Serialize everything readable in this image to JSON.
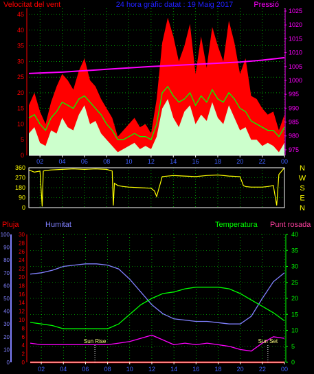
{
  "chart_data": [
    {
      "type": "line",
      "id": "wind",
      "title": "24 hora gràfic datat : 19 Maig 2017",
      "left_label": "Velocitat del vent",
      "right_label": "Pressió",
      "x_ticks": [
        "02",
        "04",
        "06",
        "08",
        "10",
        "12",
        "14",
        "16",
        "18",
        "20",
        "22",
        "00"
      ],
      "y_left_ticks": [
        "0",
        "5",
        "10",
        "15",
        "20",
        "25",
        "30",
        "35",
        "40",
        "45"
      ],
      "y_right_ticks": [
        "975",
        "980",
        "985",
        "990",
        "995",
        "1000",
        "1005",
        "1010",
        "1015",
        "1020",
        "1025"
      ],
      "y_left_range": [
        0,
        47
      ],
      "y_right_range": [
        973,
        1026
      ],
      "x_range": [
        1,
        24
      ],
      "grid": true,
      "series": [
        {
          "role": "gust",
          "color": "#ff0000",
          "x": [
            1.0,
            1.5,
            2.0,
            2.5,
            3.0,
            3.5,
            4.0,
            4.5,
            5.0,
            5.5,
            6.0,
            6.5,
            7.0,
            7.5,
            8.0,
            8.5,
            9.0,
            9.5,
            10.0,
            10.5,
            11.0,
            11.5,
            12.0,
            12.5,
            13.0,
            13.5,
            14.0,
            14.5,
            15.0,
            15.5,
            16.0,
            16.5,
            17.0,
            17.5,
            18.0,
            18.5,
            19.0,
            19.5,
            20.0,
            20.5,
            21.0,
            21.5,
            22.0,
            22.5,
            23.0,
            23.5,
            24.0
          ],
          "y": [
            16,
            20,
            14,
            10,
            17,
            22,
            26,
            24,
            21,
            27,
            31,
            24,
            22,
            18,
            15,
            12,
            6,
            8,
            10,
            12,
            9,
            10,
            7,
            18,
            36,
            44,
            38,
            30,
            35,
            42,
            26,
            38,
            28,
            41,
            35,
            30,
            43,
            36,
            26,
            31,
            19,
            18,
            15,
            13,
            14,
            8,
            13
          ]
        },
        {
          "role": "average",
          "color": "#00ff00",
          "x": [
            1.0,
            1.5,
            2.0,
            2.5,
            3.0,
            3.5,
            4.0,
            4.5,
            5.0,
            5.5,
            6.0,
            6.5,
            7.0,
            7.5,
            8.0,
            8.5,
            9.0,
            9.5,
            10.0,
            10.5,
            11.0,
            11.5,
            12.0,
            12.5,
            13.0,
            13.5,
            14.0,
            14.5,
            15.0,
            15.5,
            16.0,
            16.5,
            17.0,
            17.5,
            18.0,
            18.5,
            19.0,
            19.5,
            20.0,
            20.5,
            21.0,
            21.5,
            22.0,
            22.5,
            23.0,
            23.5,
            24.0
          ],
          "y": [
            12,
            13,
            10,
            8,
            12,
            14,
            17,
            16,
            15,
            18,
            19,
            17,
            15,
            13,
            10,
            8,
            5,
            5,
            6,
            7,
            6,
            6,
            5,
            10,
            20,
            22,
            19,
            17,
            18,
            20,
            16,
            19,
            17,
            21,
            18,
            17,
            20,
            18,
            15,
            14,
            11,
            10,
            9,
            8,
            8,
            6,
            9
          ]
        },
        {
          "role": "wind",
          "color": "#ccffcc",
          "x": [
            1.0,
            1.5,
            2.0,
            2.5,
            3.0,
            3.5,
            4.0,
            4.5,
            5.0,
            5.5,
            6.0,
            6.5,
            7.0,
            7.5,
            8.0,
            8.5,
            9.0,
            9.5,
            10.0,
            10.5,
            11.0,
            11.5,
            12.0,
            12.5,
            13.0,
            13.5,
            14.0,
            14.5,
            15.0,
            15.5,
            16.0,
            16.5,
            17.0,
            17.5,
            18.0,
            18.5,
            19.0,
            19.5,
            20.0,
            20.5,
            21.0,
            21.5,
            22.0,
            22.5,
            23.0,
            23.5,
            24.0
          ],
          "y": [
            7,
            9,
            4,
            3,
            8,
            7,
            12,
            9,
            8,
            13,
            16,
            10,
            11,
            7,
            5,
            3,
            1,
            2,
            3,
            4,
            2,
            3,
            2,
            6,
            15,
            18,
            12,
            9,
            14,
            16,
            10,
            13,
            11,
            17,
            12,
            10,
            16,
            12,
            8,
            9,
            5,
            5,
            3,
            4,
            3,
            1,
            4
          ]
        },
        {
          "role": "pressure",
          "axis": "right",
          "color": "#ff00ff",
          "x": [
            1,
            4,
            8,
            12,
            16,
            20,
            22,
            24
          ],
          "y": [
            1002.5,
            1003,
            1004,
            1005,
            1005.8,
            1006.6,
            1007.3,
            1008.2
          ]
        }
      ]
    },
    {
      "type": "line",
      "id": "direction",
      "y_ticks": [
        "360",
        "270",
        "180",
        "90",
        "0"
      ],
      "y_range": [
        0,
        360
      ],
      "x_range": [
        1,
        24
      ],
      "compass_labels": [
        "N",
        "W",
        "S",
        "E",
        "N"
      ],
      "grid": true,
      "series": [
        {
          "role": "direction",
          "color": "#ffff00",
          "x": [
            1.0,
            1.5,
            2.0,
            2.2,
            2.3,
            2.5,
            3.0,
            4.0,
            5.0,
            6.0,
            7.0,
            8.0,
            8.5,
            8.6,
            8.7,
            9.0,
            9.5,
            10.0,
            11.0,
            12.0,
            12.3,
            12.5,
            13.0,
            14.0,
            15.0,
            16.0,
            17.0,
            18.0,
            19.0,
            20.0,
            20.3,
            20.5,
            21.0,
            22.0,
            22.5,
            23.0,
            23.3,
            23.5,
            24.0
          ],
          "y": [
            340,
            320,
            330,
            10,
            330,
            335,
            340,
            345,
            350,
            345,
            350,
            345,
            330,
            20,
            220,
            200,
            190,
            185,
            180,
            175,
            150,
            100,
            280,
            290,
            285,
            280,
            290,
            295,
            285,
            280,
            200,
            190,
            185,
            185,
            190,
            200,
            20,
            300,
            360
          ]
        }
      ]
    },
    {
      "type": "line",
      "id": "climate",
      "left_labels": [
        "Pluja",
        "Humitat"
      ],
      "right_labels": [
        "Temperatura",
        "Punt rosada"
      ],
      "y_rain_ticks": [
        "0",
        "2",
        "4",
        "6",
        "8",
        "10",
        "12",
        "14",
        "16",
        "18",
        "20",
        "22",
        "24",
        "26",
        "28",
        "30"
      ],
      "y_humidity_ticks": [
        "0",
        "10",
        "20",
        "30",
        "40",
        "50",
        "60",
        "70",
        "80",
        "90",
        "100"
      ],
      "y_temp_ticks": [
        "0",
        "5",
        "10",
        "15",
        "20",
        "25",
        "30",
        "35",
        "40"
      ],
      "x_ticks": [
        "02",
        "04",
        "06",
        "08",
        "10",
        "12",
        "14",
        "16",
        "18",
        "20",
        "22",
        "00"
      ],
      "x_range": [
        1,
        24
      ],
      "annotations": [
        {
          "label": "Sun Rise",
          "x": 6.85
        },
        {
          "label": "Sun Set",
          "x": 22.5
        }
      ],
      "series": [
        {
          "role": "humidity",
          "axis": "humidity",
          "color": "#8080ff",
          "x": [
            1,
            2,
            3,
            4,
            5,
            6,
            7,
            8,
            9,
            10,
            11,
            12,
            13,
            14,
            15,
            16,
            17,
            18,
            19,
            20,
            21,
            22,
            23,
            24
          ],
          "y": [
            69,
            70,
            72,
            75,
            76,
            77,
            77,
            76,
            73,
            65,
            55,
            45,
            38,
            34,
            33,
            32,
            32,
            31,
            30,
            30,
            36,
            50,
            63,
            70
          ]
        },
        {
          "role": "temperature",
          "axis": "temp",
          "color": "#00ff00",
          "x": [
            1,
            2,
            3,
            4,
            5,
            6,
            7,
            8,
            9,
            10,
            11,
            12,
            13,
            14,
            15,
            16,
            17,
            18,
            19,
            20,
            21,
            22,
            23,
            24
          ],
          "y": [
            12.5,
            12,
            11.5,
            10.5,
            10.5,
            10.5,
            10.5,
            10.5,
            12,
            15,
            18,
            20,
            21.5,
            22,
            23,
            23.5,
            23.5,
            23.5,
            23,
            21.5,
            19.5,
            17.5,
            15.5,
            13
          ]
        },
        {
          "role": "dew_point",
          "axis": "temp",
          "color": "#ff00ff",
          "x": [
            1,
            2,
            3,
            4,
            5,
            6,
            7,
            8,
            9,
            10,
            11,
            12,
            13,
            14,
            15,
            16,
            17,
            18,
            19,
            20,
            21,
            22,
            23,
            24
          ],
          "y": [
            6,
            5.5,
            5.5,
            5.5,
            5.5,
            5.5,
            5.5,
            5.5,
            6,
            6.5,
            7.5,
            8.5,
            7,
            5.5,
            6,
            5.5,
            6,
            5.5,
            5,
            4,
            3.5,
            6,
            8,
            7.5
          ]
        },
        {
          "role": "rain",
          "axis": "rain",
          "color": "#ff0000",
          "x": [
            1,
            24
          ],
          "y": [
            0,
            0
          ]
        }
      ]
    }
  ]
}
